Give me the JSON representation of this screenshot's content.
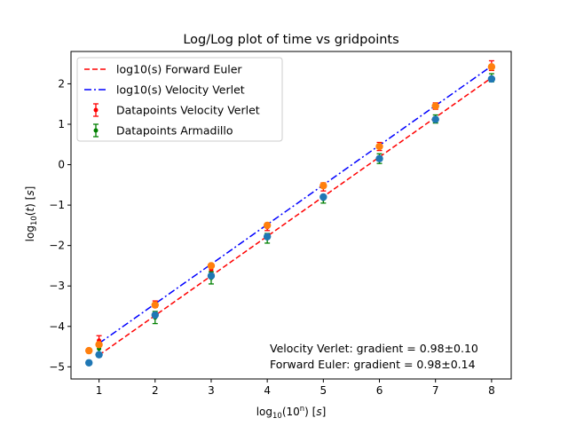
{
  "chart_data": {
    "type": "line",
    "title": "Log/Log plot of time vs gridpoints",
    "xlabel": "log10(10^n) [s]",
    "ylabel": "log10(t) [s]",
    "xlim": [
      0.5,
      8.35
    ],
    "ylim": [
      -5.3,
      2.8
    ],
    "xticks": [
      1,
      2,
      3,
      4,
      5,
      6,
      7,
      8
    ],
    "yticks": [
      -5,
      -4,
      -3,
      -2,
      -1,
      0,
      1,
      2
    ],
    "grid": false,
    "legend_position": "top-left",
    "lines": [
      {
        "name": "log10(s) Forward Euler",
        "style": "dashed",
        "color": "#ff0000",
        "x": [
          1,
          8
        ],
        "y": [
          -4.71,
          2.15
        ]
      },
      {
        "name": "log10(s) Velocity Verlet",
        "style": "dashdot",
        "color": "#0000ff",
        "x": [
          1,
          8
        ],
        "y": [
          -4.42,
          2.44
        ]
      }
    ],
    "errorbar_series": [
      {
        "name": "Datapoints Velocity Verlet",
        "color": "#ff0000",
        "x": [
          1,
          2,
          3,
          4,
          5,
          6,
          7,
          8
        ],
        "y": [
          -4.35,
          -3.45,
          -2.6,
          -1.55,
          -0.55,
          0.45,
          1.45,
          2.45
        ],
        "err": [
          0.12,
          0.08,
          0.1,
          0.08,
          0.1,
          0.1,
          0.08,
          0.12
        ]
      },
      {
        "name": "Datapoints Armadillo",
        "color": "#008000",
        "x": [
          1,
          2,
          3,
          4,
          5,
          6,
          7,
          8
        ],
        "y": [
          -4.55,
          -3.78,
          -2.8,
          -1.82,
          -0.85,
          0.15,
          1.13,
          2.15
        ],
        "err": [
          0.12,
          0.15,
          0.15,
          0.12,
          0.1,
          0.12,
          0.1,
          0.1
        ]
      }
    ],
    "scatter_series": [
      {
        "color": "#ff7f0e",
        "x": [
          0.82,
          1,
          2,
          3,
          4,
          5,
          6,
          7,
          8
        ],
        "y": [
          -4.6,
          -4.45,
          -3.47,
          -2.5,
          -1.5,
          -0.52,
          0.45,
          1.45,
          2.42
        ]
      },
      {
        "color": "#1f77b4",
        "x": [
          0.82,
          1,
          2,
          3,
          4,
          5,
          6,
          7,
          8
        ],
        "y": [
          -4.9,
          -4.7,
          -3.72,
          -2.75,
          -1.78,
          -0.8,
          0.15,
          1.12,
          2.12
        ]
      }
    ],
    "annotations": [
      "Velocity Verlet: gradient = 0.98±0.10",
      "Forward Euler: gradient = 0.98±0.14"
    ]
  }
}
